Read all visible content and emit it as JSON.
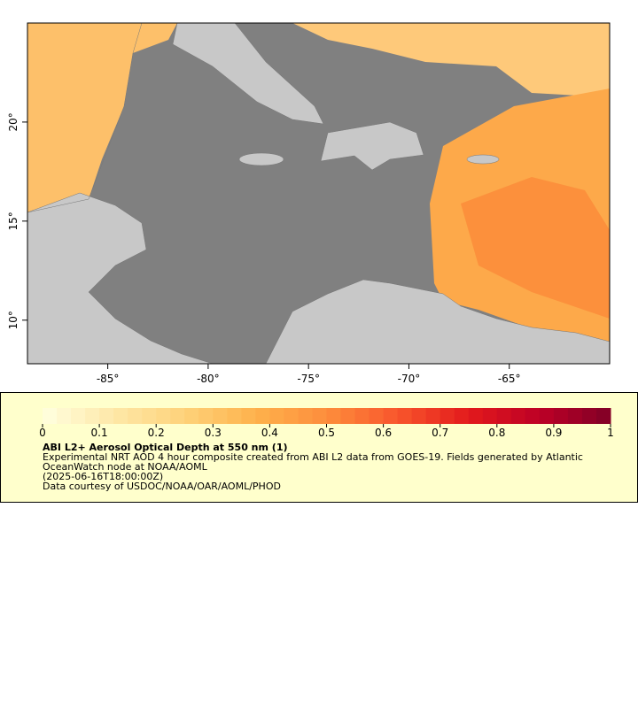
{
  "map": {
    "xlim": [
      -89,
      -60
    ],
    "ylim": [
      7.8,
      25
    ],
    "xticks": [
      {
        "value": -85,
        "label": "-85°"
      },
      {
        "value": -80,
        "label": "-80°"
      },
      {
        "value": -75,
        "label": "-75°"
      },
      {
        "value": -70,
        "label": "-70°"
      },
      {
        "value": -65,
        "label": "-65°"
      }
    ],
    "yticks": [
      {
        "value": 10,
        "label": "10°"
      },
      {
        "value": 15,
        "label": "15°"
      },
      {
        "value": 20,
        "label": "20°"
      }
    ]
  },
  "colorbar": {
    "lim": [
      0,
      1
    ],
    "ticks": [
      0,
      0.1,
      0.2,
      0.3,
      0.4,
      0.5,
      0.6,
      0.7,
      0.8,
      0.9,
      1
    ],
    "colors": [
      "#ffffe0",
      "#fee8a8",
      "#fed27a",
      "#feb24c",
      "#fd8d3c",
      "#f8562c",
      "#e31a1c",
      "#bd0026",
      "#800026"
    ]
  },
  "legend": {
    "title": "ABI L2+ Aerosol Optical Depth at 550 nm (1)",
    "description": "Experimental NRT AOD 4 hour composite created from ABI L2 data from GOES-19. Fields generated by Atlantic OceanWatch node at NOAA/AOML",
    "time": "(2025-06-16T18:00:00Z)",
    "credit": "Data courtesy of USDOC/NOAA/OAR/AOML/PHOD"
  }
}
